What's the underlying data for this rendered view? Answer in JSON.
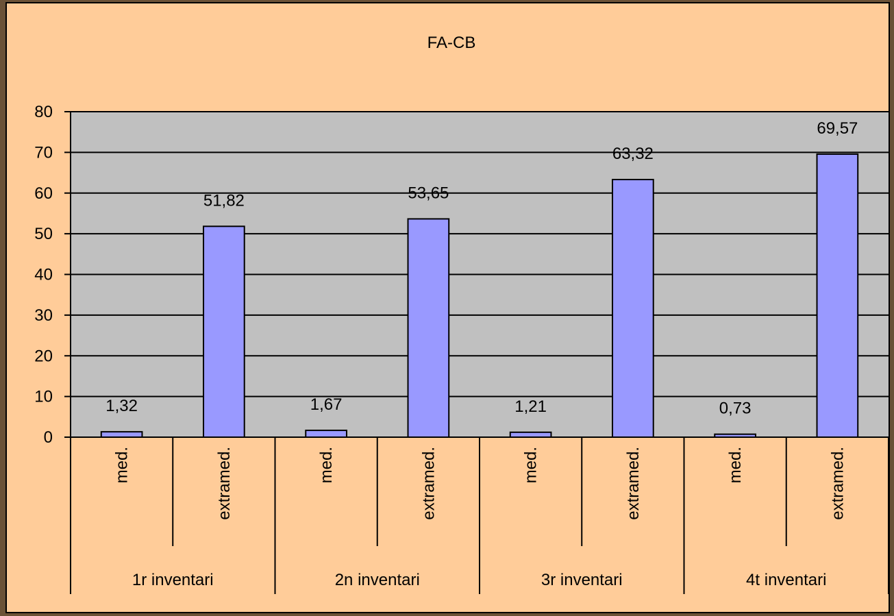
{
  "chart_data": {
    "type": "bar",
    "title": "FA-CB",
    "xlabel": "",
    "ylabel": "",
    "ylim": [
      0,
      80
    ],
    "yticks": [
      0,
      10,
      20,
      30,
      40,
      50,
      60,
      70,
      80
    ],
    "grid": true,
    "legend": "none",
    "groups": [
      {
        "label": "1r inventari",
        "categories": [
          "med.",
          "extramed."
        ]
      },
      {
        "label": "2n inventari",
        "categories": [
          "med.",
          "extramed."
        ]
      },
      {
        "label": "3r inventari",
        "categories": [
          "med.",
          "extramed."
        ]
      },
      {
        "label": "4t inventari",
        "categories": [
          "med.",
          "extramed."
        ]
      }
    ],
    "values": [
      1.32,
      51.82,
      1.67,
      53.65,
      1.21,
      63.32,
      0.73,
      69.57
    ],
    "value_labels": [
      "1,32",
      "51,82",
      "1,67",
      "53,65",
      "1,21",
      "63,32",
      "0,73",
      "69,57"
    ],
    "colors": {
      "background": "#ffcc99",
      "plot_area": "#c0c0c0",
      "bar": "#9999ff",
      "outer": "#6b5237"
    }
  }
}
